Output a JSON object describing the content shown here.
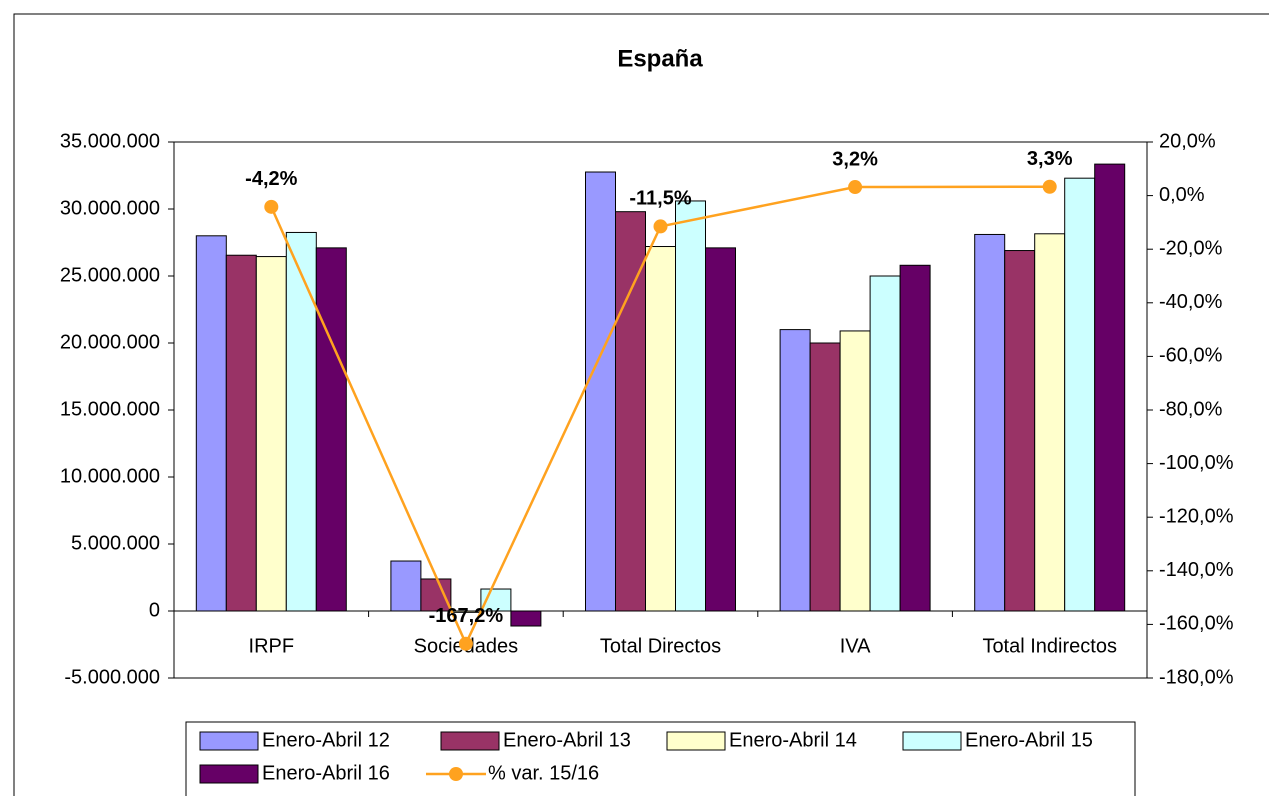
{
  "chart_data": {
    "type": "bar",
    "title": "España",
    "categories": [
      "IRPF",
      "Sociedades",
      "Total Directos",
      "IVA",
      "Total Indirectos"
    ],
    "series": [
      {
        "name": "Enero-Abril 12",
        "color": "#9999ff",
        "values": [
          28000000,
          3730000,
          32760000,
          21000000,
          28100000
        ]
      },
      {
        "name": "Enero-Abril 13",
        "color": "#993366",
        "values": [
          26550000,
          2390000,
          29800000,
          20000000,
          26900000
        ]
      },
      {
        "name": "Enero-Abril 14",
        "color": "#ffffcc",
        "values": [
          26450000,
          -100000,
          27200000,
          20900000,
          28150000
        ]
      },
      {
        "name": "Enero-Abril 15",
        "color": "#ccffff",
        "values": [
          28250000,
          1640000,
          30600000,
          25000000,
          32300000
        ]
      },
      {
        "name": "Enero-Abril 16",
        "color": "#660066",
        "values": [
          27100000,
          -1120000,
          27100000,
          25800000,
          33350000
        ]
      },
      {
        "name": "% var. 15/16",
        "color": "#ffa21f",
        "type": "line",
        "axis": "y2",
        "values": [
          -4.2,
          -167.2,
          -11.5,
          3.2,
          3.3
        ],
        "value_labels": [
          "-4,2%",
          "-167,2%",
          "-11,5%",
          "3,2%",
          "3,3%"
        ]
      }
    ],
    "ylim": [
      -5000000,
      35000000
    ],
    "yticks": [
      {
        "value": -5000000,
        "label": "-5.000.000"
      },
      0,
      {
        "value": 5000000,
        "label": "5.000.000"
      },
      {
        "value": 10000000,
        "label": "10.000.000"
      },
      {
        "value": 15000000,
        "label": "15.000.000"
      },
      {
        "value": 20000000,
        "label": "20.000.000"
      },
      {
        "value": 25000000,
        "label": "25.000.000"
      },
      {
        "value": 30000000,
        "label": "30.000.000"
      },
      {
        "value": 35000000,
        "label": "35.000.000"
      }
    ],
    "y2lim": [
      -180,
      20
    ],
    "y2ticks": [
      {
        "value": -180,
        "label": "-180,0%"
      },
      {
        "value": -160,
        "label": "-160,0%"
      },
      {
        "value": -140,
        "label": "-140,0%"
      },
      {
        "value": -120,
        "label": "-120,0%"
      },
      {
        "value": -100,
        "label": "-100,0%"
      },
      {
        "value": -80,
        "label": "-80,0%"
      },
      {
        "value": -60,
        "label": "-60,0%"
      },
      {
        "value": -40,
        "label": "-40,0%"
      },
      {
        "value": -20,
        "label": "-20,0%"
      },
      {
        "value": 0,
        "label": "0,0%"
      },
      {
        "value": 20,
        "label": "20,0%"
      }
    ],
    "grid": false,
    "legend": "bottom"
  }
}
